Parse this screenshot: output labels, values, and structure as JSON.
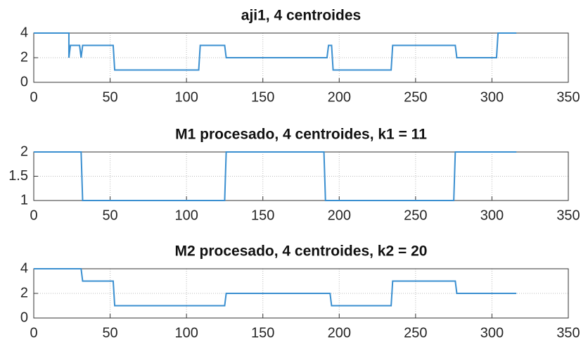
{
  "chart_data": [
    {
      "type": "line",
      "title": "aji1, 4 centroides",
      "x": [
        0,
        23,
        23,
        24,
        30,
        31,
        32,
        52,
        53,
        108,
        109,
        125,
        126,
        192,
        193,
        195,
        196,
        234,
        235,
        276,
        277,
        303,
        304,
        316
      ],
      "series": [
        {
          "color": "#3a8fd0",
          "values": [
            4,
            4,
            2,
            3,
            3,
            2,
            3,
            3,
            1,
            1,
            3,
            3,
            2,
            2,
            3,
            3,
            1,
            1,
            3,
            3,
            2,
            2,
            4,
            4
          ]
        }
      ],
      "xlim": [
        0,
        350
      ],
      "xticks": [
        0,
        50,
        100,
        150,
        200,
        250,
        300,
        350
      ],
      "ylim": [
        0,
        4
      ],
      "yticks": [
        0,
        2,
        4
      ],
      "grid": true
    },
    {
      "type": "line",
      "title": "M1 procesado, 4 centroides, k1 = 11",
      "x": [
        0,
        31,
        32,
        125,
        126,
        190,
        191,
        275,
        276,
        316
      ],
      "series": [
        {
          "color": "#3a8fd0",
          "values": [
            2,
            2,
            1,
            1,
            2,
            2,
            1,
            1,
            2,
            2
          ]
        }
      ],
      "xlim": [
        0,
        350
      ],
      "xticks": [
        0,
        50,
        100,
        150,
        200,
        250,
        300,
        350
      ],
      "ylim": [
        1,
        2
      ],
      "yticks": [
        1,
        1.5,
        2
      ],
      "grid": true
    },
    {
      "type": "line",
      "title": "M2 procesado, 4 centroides, k2 = 20",
      "x": [
        0,
        31,
        32,
        52,
        53,
        125,
        126,
        194,
        195,
        234,
        235,
        276,
        277,
        316
      ],
      "series": [
        {
          "color": "#3a8fd0",
          "values": [
            4,
            4,
            3,
            3,
            1,
            1,
            2,
            2,
            1,
            1,
            3,
            3,
            2,
            2
          ]
        }
      ],
      "xlim": [
        0,
        350
      ],
      "xticks": [
        0,
        50,
        100,
        150,
        200,
        250,
        300,
        350
      ],
      "ylim": [
        0,
        4
      ],
      "yticks": [
        0,
        2,
        4
      ],
      "grid": true
    }
  ]
}
